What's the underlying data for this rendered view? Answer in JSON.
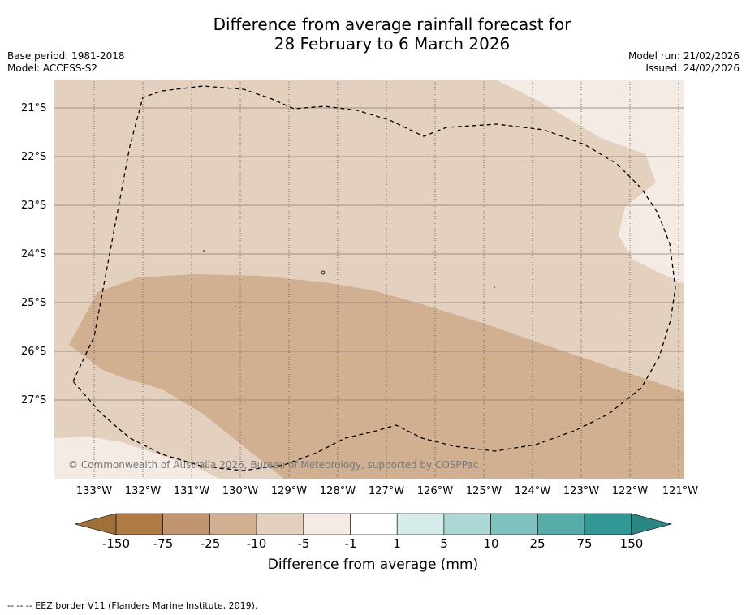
{
  "title_line1": "Difference from average rainfall forecast for",
  "title_line2": "28 February to 6 March 2026",
  "base_period": "Base period: 1981-2018",
  "model": "Model: ACCESS-S2",
  "model_run": "Model run: 21/02/2026",
  "issued": "Issued: 24/02/2026",
  "copyright": "© Commonwealth of Australia 2026, Bureau of Meteorology, supported by COSPPac",
  "lat_labels": [
    "21°S",
    "22°S",
    "23°S",
    "24°S",
    "25°S",
    "26°S",
    "27°S"
  ],
  "lon_labels": [
    "133°W",
    "132°W",
    "131°W",
    "130°W",
    "129°W",
    "128°W",
    "127°W",
    "126°W",
    "125°W",
    "124°W",
    "123°W",
    "122°W",
    "121°W"
  ],
  "legend": {
    "title": "Difference from average (mm)",
    "tick_labels": [
      "-150",
      "-75",
      "-25",
      "-10",
      "-5",
      "-1",
      "1",
      "5",
      "10",
      "25",
      "75",
      "150"
    ],
    "colors": [
      "#a0703a",
      "#b07a45",
      "#c09570",
      "#d0b090",
      "#e3d0be",
      "#f4ebe4",
      "#ffffff",
      "#d5ecea",
      "#abd7d5",
      "#80c2bf",
      "#57aba9",
      "#319896",
      "#2a8583"
    ]
  },
  "footer": "--  --  -- EEZ border V11 (Flanders Marine Institute, 2019)."
}
